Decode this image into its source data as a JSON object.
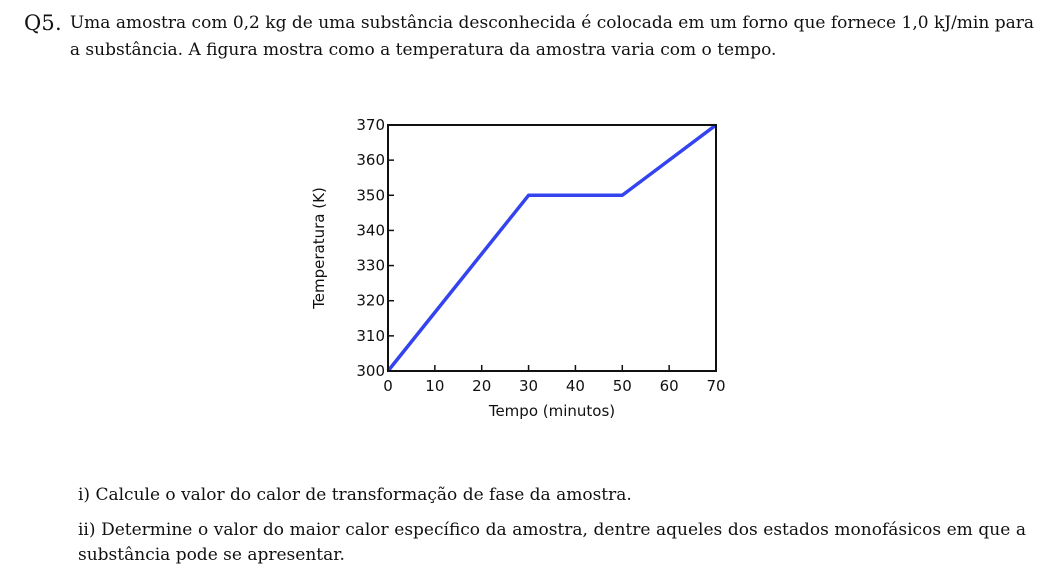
{
  "question": {
    "number": "Q5.",
    "statement": "Uma amostra com 0,2 kg de uma substância desconhecida é colocada em um forno que fornece 1,0 kJ/min para a substância. A figura mostra como a temperatura da amostra varia com o tempo."
  },
  "chart_data": {
    "type": "line",
    "title": "",
    "xlabel": "Tempo (minutos)",
    "ylabel": "Temperatura (K)",
    "xlim": [
      0,
      70
    ],
    "ylim": [
      300,
      370
    ],
    "x_ticks": [
      "0",
      "10",
      "20",
      "30",
      "40",
      "50",
      "60",
      "70"
    ],
    "y_ticks": [
      "300",
      "310",
      "320",
      "330",
      "340",
      "350",
      "360",
      "370"
    ],
    "grid": false,
    "line_color": "#3344ee",
    "series": [
      {
        "x": [
          0,
          30,
          50,
          70
        ],
        "y": [
          300,
          350,
          350,
          370
        ]
      }
    ]
  },
  "parts": [
    {
      "text": "i) Calcule o valor do calor de transformação de fase da amostra."
    },
    {
      "text": "ii) Determine o valor do maior calor específico da amostra, dentre aqueles dos estados monofásicos em que a substância pode se apresentar."
    }
  ]
}
